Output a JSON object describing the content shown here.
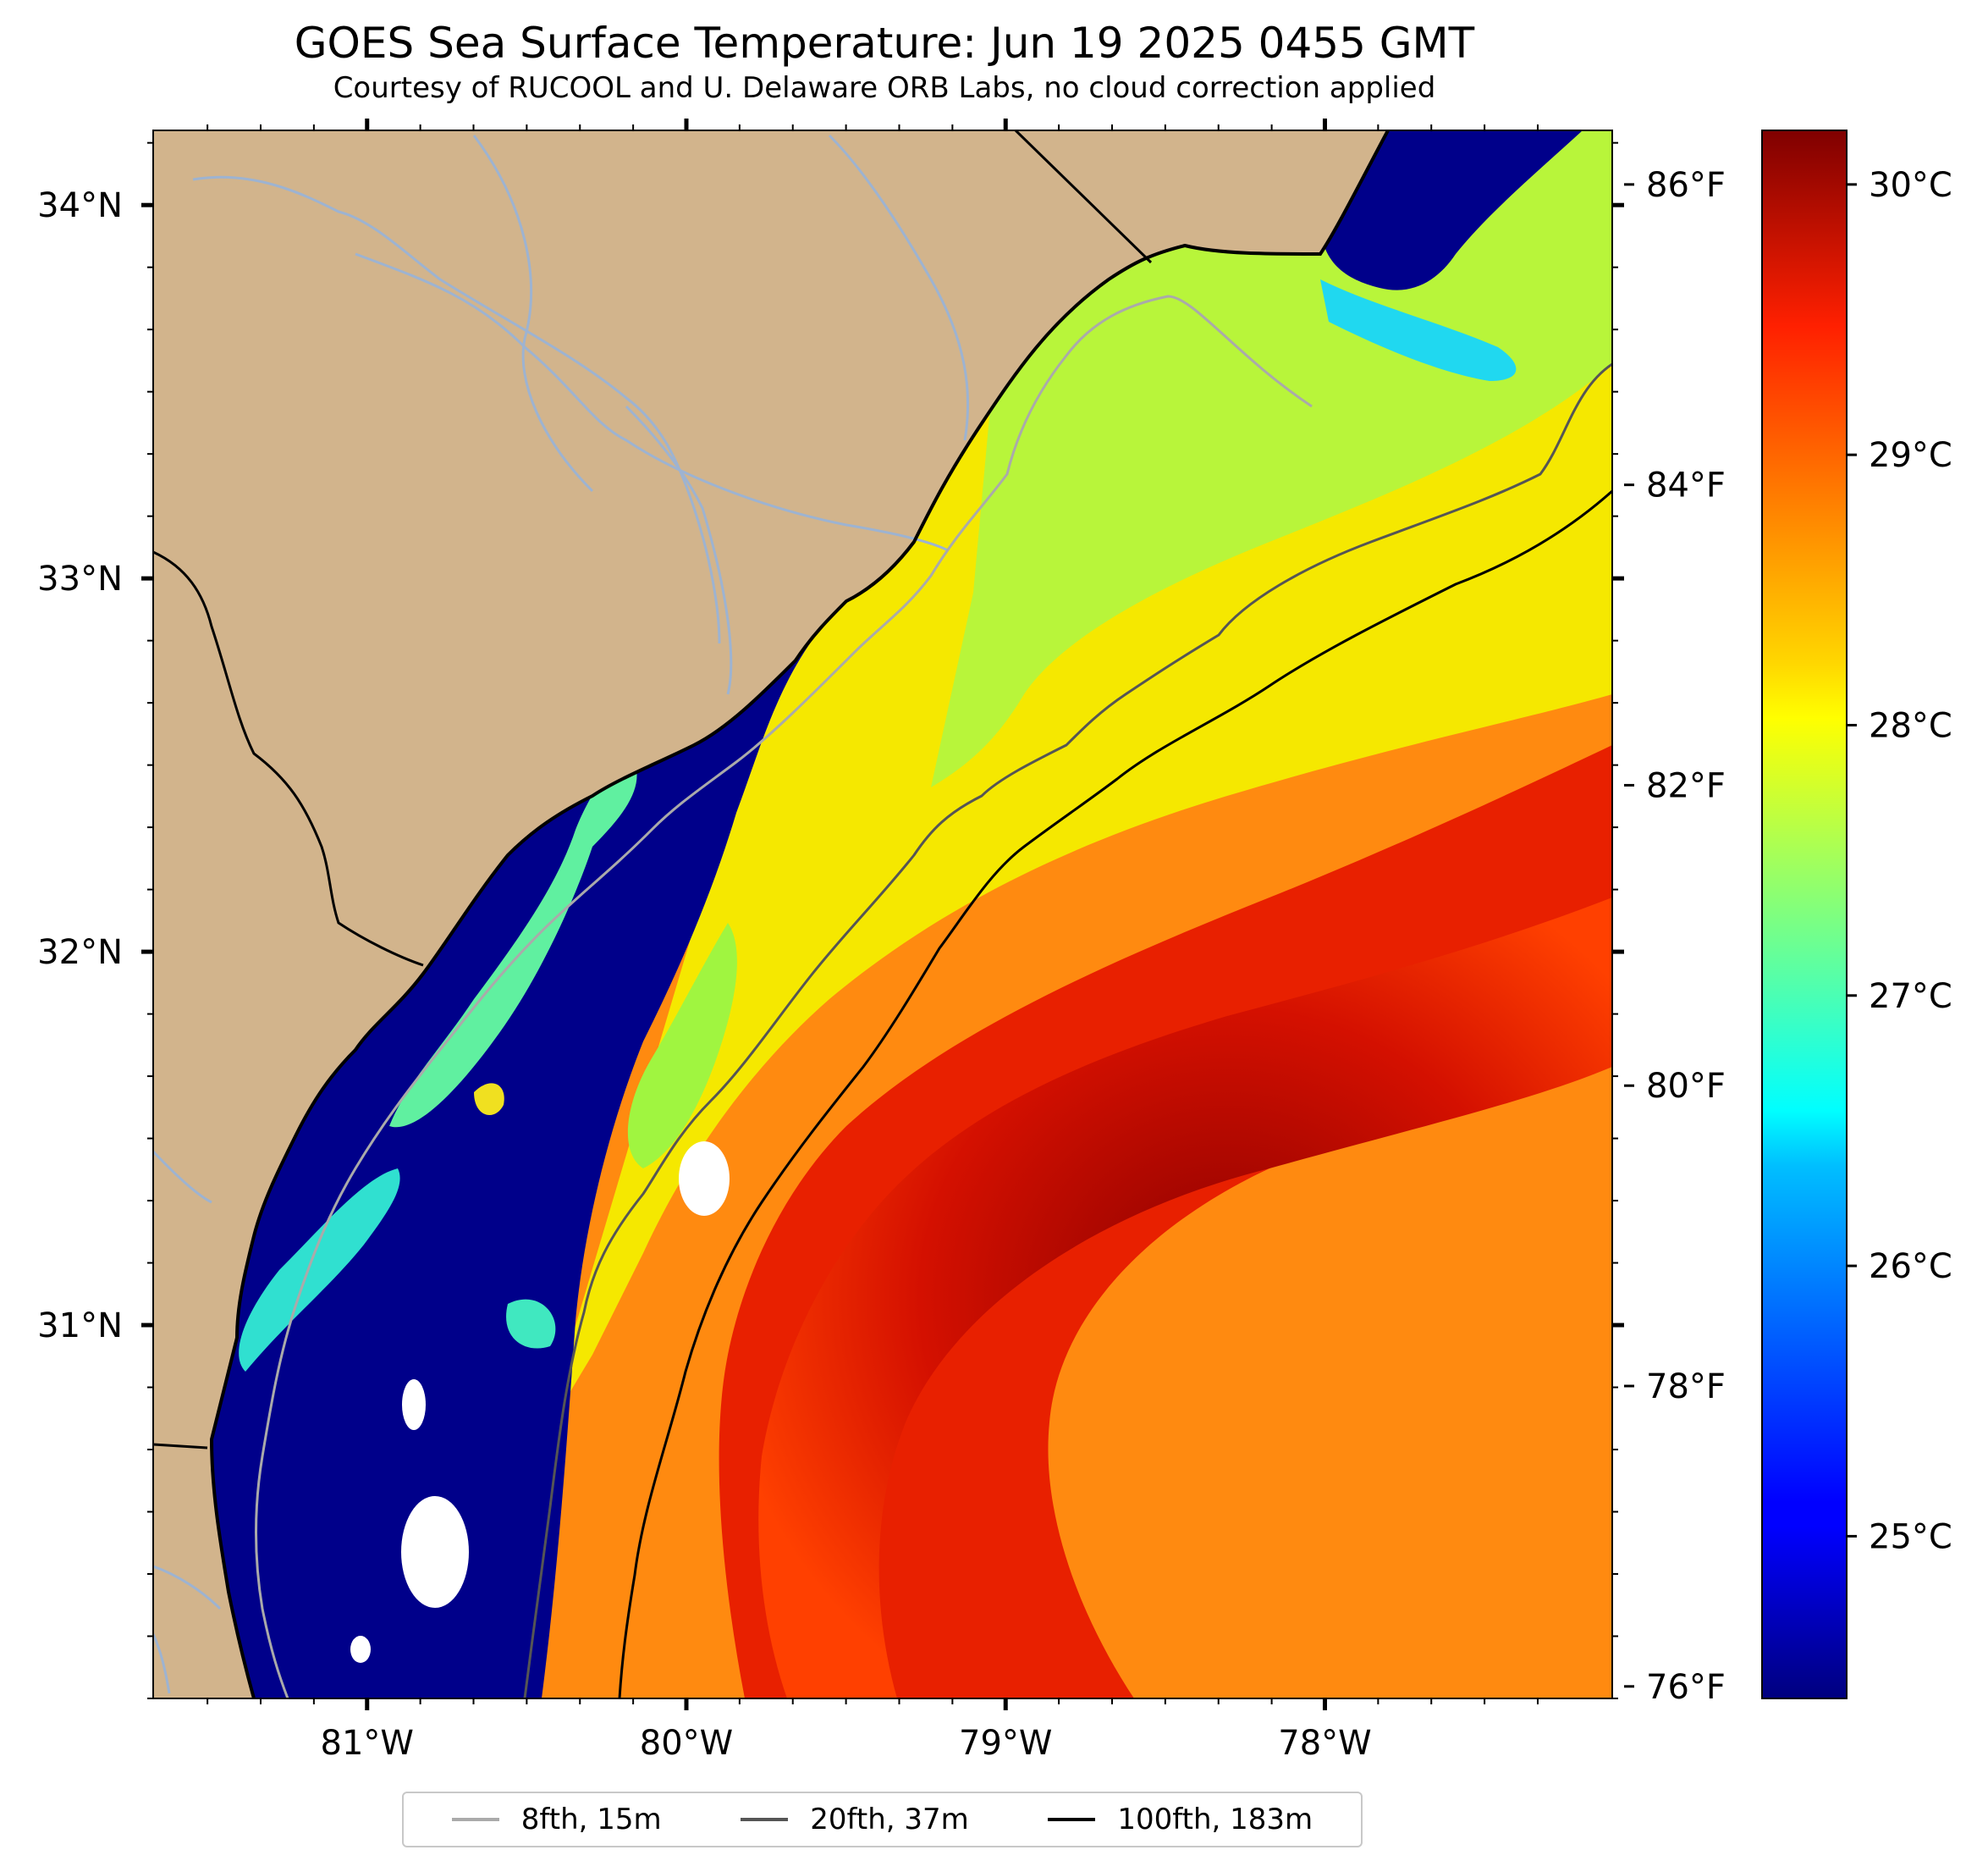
{
  "title": "GOES Sea Surface Temperature: Jun 19 2025 0455 GMT",
  "subtitle": "Courtesy of RUCOOL and U. Delaware ORB Labs, no cloud correction applied",
  "map": {
    "extent": {
      "lon_min": -81.67,
      "lon_max": -77.1,
      "lat_min": 30.0,
      "lat_max": 34.2
    },
    "colors": {
      "land": "#d2b48c",
      "river": "#9db3d1",
      "coastline": "#000000",
      "no_data": "#ffffff"
    }
  },
  "axes": {
    "lon_ticks": [
      {
        "value": -81,
        "label": "81°W"
      },
      {
        "value": -80,
        "label": "80°W"
      },
      {
        "value": -79,
        "label": "79°W"
      },
      {
        "value": -78,
        "label": "78°W"
      }
    ],
    "lat_ticks": [
      {
        "value": 34,
        "label": "34°N"
      },
      {
        "value": 33,
        "label": "33°N"
      },
      {
        "value": 32,
        "label": "32°N"
      },
      {
        "value": 31,
        "label": "31°N"
      }
    ],
    "fahrenheit_ticks": [
      {
        "value": 86,
        "label": "86°F"
      },
      {
        "value": 84,
        "label": "84°F"
      },
      {
        "value": 82,
        "label": "82°F"
      },
      {
        "value": 80,
        "label": "80°F"
      },
      {
        "value": 78,
        "label": "78°F"
      },
      {
        "value": 76,
        "label": "76°F"
      }
    ]
  },
  "colorbar": {
    "min_c": 24.4,
    "max_c": 30.2,
    "colormap": "jet",
    "ticks": [
      {
        "value": 30,
        "label": "30°C"
      },
      {
        "value": 29,
        "label": "29°C"
      },
      {
        "value": 28,
        "label": "28°C"
      },
      {
        "value": 27,
        "label": "27°C"
      },
      {
        "value": 26,
        "label": "26°C"
      },
      {
        "value": 25,
        "label": "25°C"
      }
    ]
  },
  "legend": [
    {
      "label": "8fth, 15m",
      "color": "#aaaaaa"
    },
    {
      "label": "20fth, 37m",
      "color": "#555555"
    },
    {
      "label": "100fth, 183m",
      "color": "#000000"
    }
  ]
}
